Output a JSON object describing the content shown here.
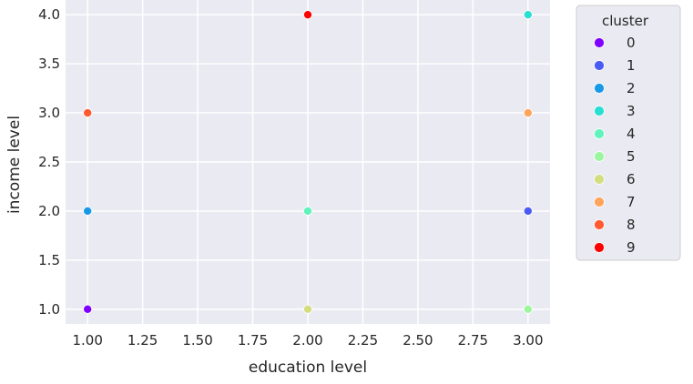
{
  "chart_data": {
    "type": "scatter",
    "xlabel": "education level",
    "ylabel": "income level",
    "xlim": [
      0.9,
      3.1
    ],
    "ylim": [
      0.85,
      4.15
    ],
    "xticks": [
      1.0,
      1.25,
      1.5,
      1.75,
      2.0,
      2.25,
      2.5,
      2.75,
      3.0
    ],
    "xtick_labels": [
      "1.00",
      "1.25",
      "1.50",
      "1.75",
      "2.00",
      "2.25",
      "2.50",
      "2.75",
      "3.00"
    ],
    "yticks": [
      1.0,
      1.5,
      2.0,
      2.5,
      3.0,
      3.5,
      4.0
    ],
    "ytick_labels": [
      "1.0",
      "1.5",
      "2.0",
      "2.5",
      "3.0",
      "3.5",
      "4.0"
    ],
    "grid": true,
    "legend": {
      "title": "cluster",
      "placement": "outside-right-top",
      "entries": [
        {
          "label": "0",
          "color": "#8000ff"
        },
        {
          "label": "1",
          "color": "#4a5bf4"
        },
        {
          "label": "2",
          "color": "#1899e8"
        },
        {
          "label": "3",
          "color": "#27dfd3"
        },
        {
          "label": "4",
          "color": "#60f3bc"
        },
        {
          "label": "5",
          "color": "#9cf69e"
        },
        {
          "label": "6",
          "color": "#d4dd80"
        },
        {
          "label": "7",
          "color": "#ffa45c"
        },
        {
          "label": "8",
          "color": "#ff5a30"
        },
        {
          "label": "9",
          "color": "#ff0000"
        }
      ]
    },
    "points": [
      {
        "x": 1.0,
        "y": 1.0,
        "cluster": "0"
      },
      {
        "x": 3.0,
        "y": 2.0,
        "cluster": "1"
      },
      {
        "x": 1.0,
        "y": 2.0,
        "cluster": "2"
      },
      {
        "x": 3.0,
        "y": 4.0,
        "cluster": "3"
      },
      {
        "x": 2.0,
        "y": 2.0,
        "cluster": "4"
      },
      {
        "x": 3.0,
        "y": 1.0,
        "cluster": "5"
      },
      {
        "x": 2.0,
        "y": 1.0,
        "cluster": "6"
      },
      {
        "x": 3.0,
        "y": 3.0,
        "cluster": "7"
      },
      {
        "x": 1.0,
        "y": 3.0,
        "cluster": "8"
      },
      {
        "x": 2.0,
        "y": 4.0,
        "cluster": "9"
      }
    ],
    "colors": {
      "plot_background": "#eaeaf2",
      "grid": "#ffffff",
      "legend_background": "#eaeaf2",
      "legend_border": "#cccccc"
    }
  }
}
